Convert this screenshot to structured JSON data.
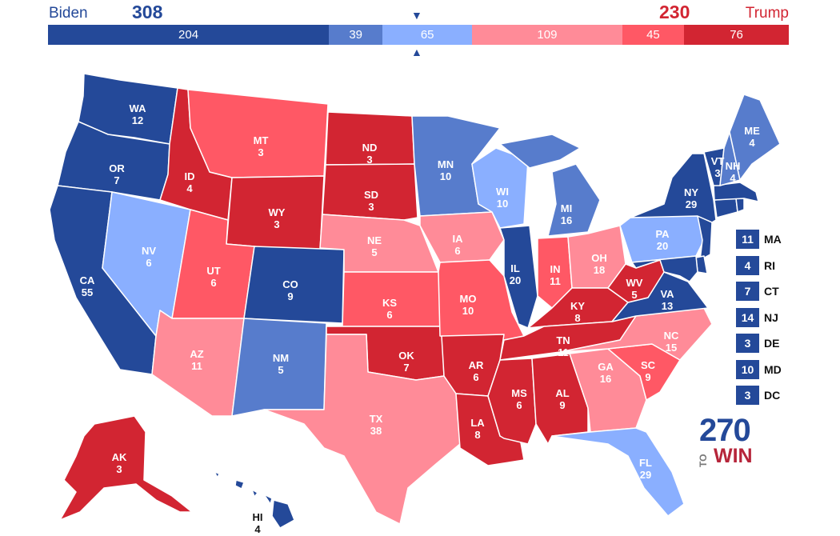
{
  "header": {
    "biden_label": "Biden",
    "trump_label": "Trump",
    "biden_total": "308",
    "trump_total": "230",
    "marker_top": "▼",
    "marker_bottom": "▲"
  },
  "tally": [
    {
      "value": 204,
      "label": "204",
      "color": "#244999"
    },
    {
      "value": 39,
      "label": "39",
      "color": "#577ccc"
    },
    {
      "value": 65,
      "label": "65",
      "color": "#8aafff"
    },
    {
      "value": 109,
      "label": "109",
      "color": "#ff8b98"
    },
    {
      "value": 45,
      "label": "45",
      "color": "#ff5865"
    },
    {
      "value": 76,
      "label": "76",
      "color": "#d22532"
    }
  ],
  "colors": {
    "safe_d": "#244999",
    "likely_d": "#577ccc",
    "lean_d": "#8aafff",
    "lean_r": "#ff8b98",
    "likely_r": "#ff5865",
    "safe_r": "#d22532"
  },
  "states": [
    {
      "abbr": "WA",
      "ev": "12",
      "rating": "safe_d"
    },
    {
      "abbr": "OR",
      "ev": "7",
      "rating": "safe_d"
    },
    {
      "abbr": "CA",
      "ev": "55",
      "rating": "safe_d"
    },
    {
      "abbr": "NV",
      "ev": "6",
      "rating": "lean_d"
    },
    {
      "abbr": "ID",
      "ev": "4",
      "rating": "safe_r"
    },
    {
      "abbr": "MT",
      "ev": "3",
      "rating": "likely_r"
    },
    {
      "abbr": "WY",
      "ev": "3",
      "rating": "safe_r"
    },
    {
      "abbr": "UT",
      "ev": "6",
      "rating": "likely_r"
    },
    {
      "abbr": "AZ",
      "ev": "11",
      "rating": "lean_r"
    },
    {
      "abbr": "CO",
      "ev": "9",
      "rating": "safe_d"
    },
    {
      "abbr": "NM",
      "ev": "5",
      "rating": "likely_d"
    },
    {
      "abbr": "ND",
      "ev": "3",
      "rating": "safe_r"
    },
    {
      "abbr": "SD",
      "ev": "3",
      "rating": "safe_r"
    },
    {
      "abbr": "NE",
      "ev": "5",
      "rating": "lean_r"
    },
    {
      "abbr": "KS",
      "ev": "6",
      "rating": "likely_r"
    },
    {
      "abbr": "OK",
      "ev": "7",
      "rating": "safe_r"
    },
    {
      "abbr": "TX",
      "ev": "38",
      "rating": "lean_r"
    },
    {
      "abbr": "MN",
      "ev": "10",
      "rating": "likely_d"
    },
    {
      "abbr": "IA",
      "ev": "6",
      "rating": "lean_r"
    },
    {
      "abbr": "MO",
      "ev": "10",
      "rating": "likely_r"
    },
    {
      "abbr": "AR",
      "ev": "6",
      "rating": "safe_r"
    },
    {
      "abbr": "LA",
      "ev": "8",
      "rating": "safe_r"
    },
    {
      "abbr": "WI",
      "ev": "10",
      "rating": "lean_d"
    },
    {
      "abbr": "IL",
      "ev": "20",
      "rating": "safe_d"
    },
    {
      "abbr": "MI",
      "ev": "16",
      "rating": "likely_d"
    },
    {
      "abbr": "IN",
      "ev": "11",
      "rating": "likely_r"
    },
    {
      "abbr": "OH",
      "ev": "18",
      "rating": "lean_r"
    },
    {
      "abbr": "KY",
      "ev": "8",
      "rating": "safe_r"
    },
    {
      "abbr": "TN",
      "ev": "11",
      "rating": "safe_r"
    },
    {
      "abbr": "MS",
      "ev": "6",
      "rating": "safe_r"
    },
    {
      "abbr": "AL",
      "ev": "9",
      "rating": "safe_r"
    },
    {
      "abbr": "GA",
      "ev": "16",
      "rating": "lean_r"
    },
    {
      "abbr": "FL",
      "ev": "29",
      "rating": "lean_d"
    },
    {
      "abbr": "SC",
      "ev": "9",
      "rating": "likely_r"
    },
    {
      "abbr": "NC",
      "ev": "15",
      "rating": "lean_r"
    },
    {
      "abbr": "VA",
      "ev": "13",
      "rating": "safe_d"
    },
    {
      "abbr": "WV",
      "ev": "5",
      "rating": "safe_r"
    },
    {
      "abbr": "PA",
      "ev": "20",
      "rating": "lean_d"
    },
    {
      "abbr": "NY",
      "ev": "29",
      "rating": "safe_d"
    },
    {
      "abbr": "VT",
      "ev": "3",
      "rating": "safe_d"
    },
    {
      "abbr": "NH",
      "ev": "4",
      "rating": "likely_d"
    },
    {
      "abbr": "ME",
      "ev": "4",
      "rating": "likely_d"
    },
    {
      "abbr": "AK",
      "ev": "3",
      "rating": "safe_r"
    },
    {
      "abbr": "HI",
      "ev": "4",
      "rating": "safe_d"
    }
  ],
  "small_states": [
    {
      "abbr": "MA",
      "ev": "11",
      "rating": "safe_d"
    },
    {
      "abbr": "RI",
      "ev": "4",
      "rating": "safe_d"
    },
    {
      "abbr": "CT",
      "ev": "7",
      "rating": "safe_d"
    },
    {
      "abbr": "NJ",
      "ev": "14",
      "rating": "safe_d"
    },
    {
      "abbr": "DE",
      "ev": "3",
      "rating": "safe_d"
    },
    {
      "abbr": "MD",
      "ev": "10",
      "rating": "safe_d"
    },
    {
      "abbr": "DC",
      "ev": "3",
      "rating": "safe_d"
    }
  ],
  "logo": {
    "num": "270",
    "to": "TO",
    "win": "WIN"
  }
}
